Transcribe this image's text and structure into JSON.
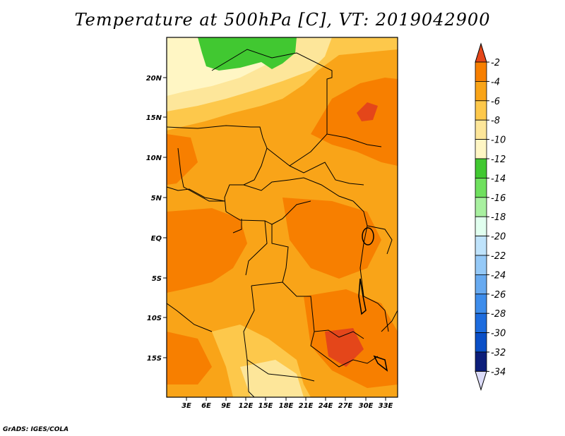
{
  "title": "Temperature at 500hPa [C], VT: 2019042900",
  "credit": "GrADS: IGES/COLA",
  "map": {
    "lat_labels": [
      "20N",
      "15N",
      "10N",
      "5N",
      "EQ",
      "5S",
      "10S",
      "15S"
    ],
    "lon_labels": [
      "3E",
      "6E",
      "9E",
      "12E",
      "15E",
      "18E",
      "21E",
      "24E",
      "27E",
      "30E",
      "33E"
    ]
  },
  "colorbar": {
    "labels": [
      "-2",
      "-4",
      "-6",
      "-8",
      "-10",
      "-12",
      "-14",
      "-16",
      "-18",
      "-20",
      "-22",
      "-24",
      "-26",
      "-28",
      "-30",
      "-32",
      "-34"
    ],
    "colors": [
      "#e4461a",
      "#f77f00",
      "#f9a418",
      "#fdc84b",
      "#fde69a",
      "#fff6c4",
      "#41c831",
      "#6fe05e",
      "#a8f0a0",
      "#e1ffef",
      "#bfe3fb",
      "#95c9f7",
      "#68aaf0",
      "#3e8deb",
      "#1d6cde",
      "#0a4fc7",
      "#0c1e7a"
    ],
    "over_color": "#e4461a",
    "under_color": "#dcdcf8"
  }
}
